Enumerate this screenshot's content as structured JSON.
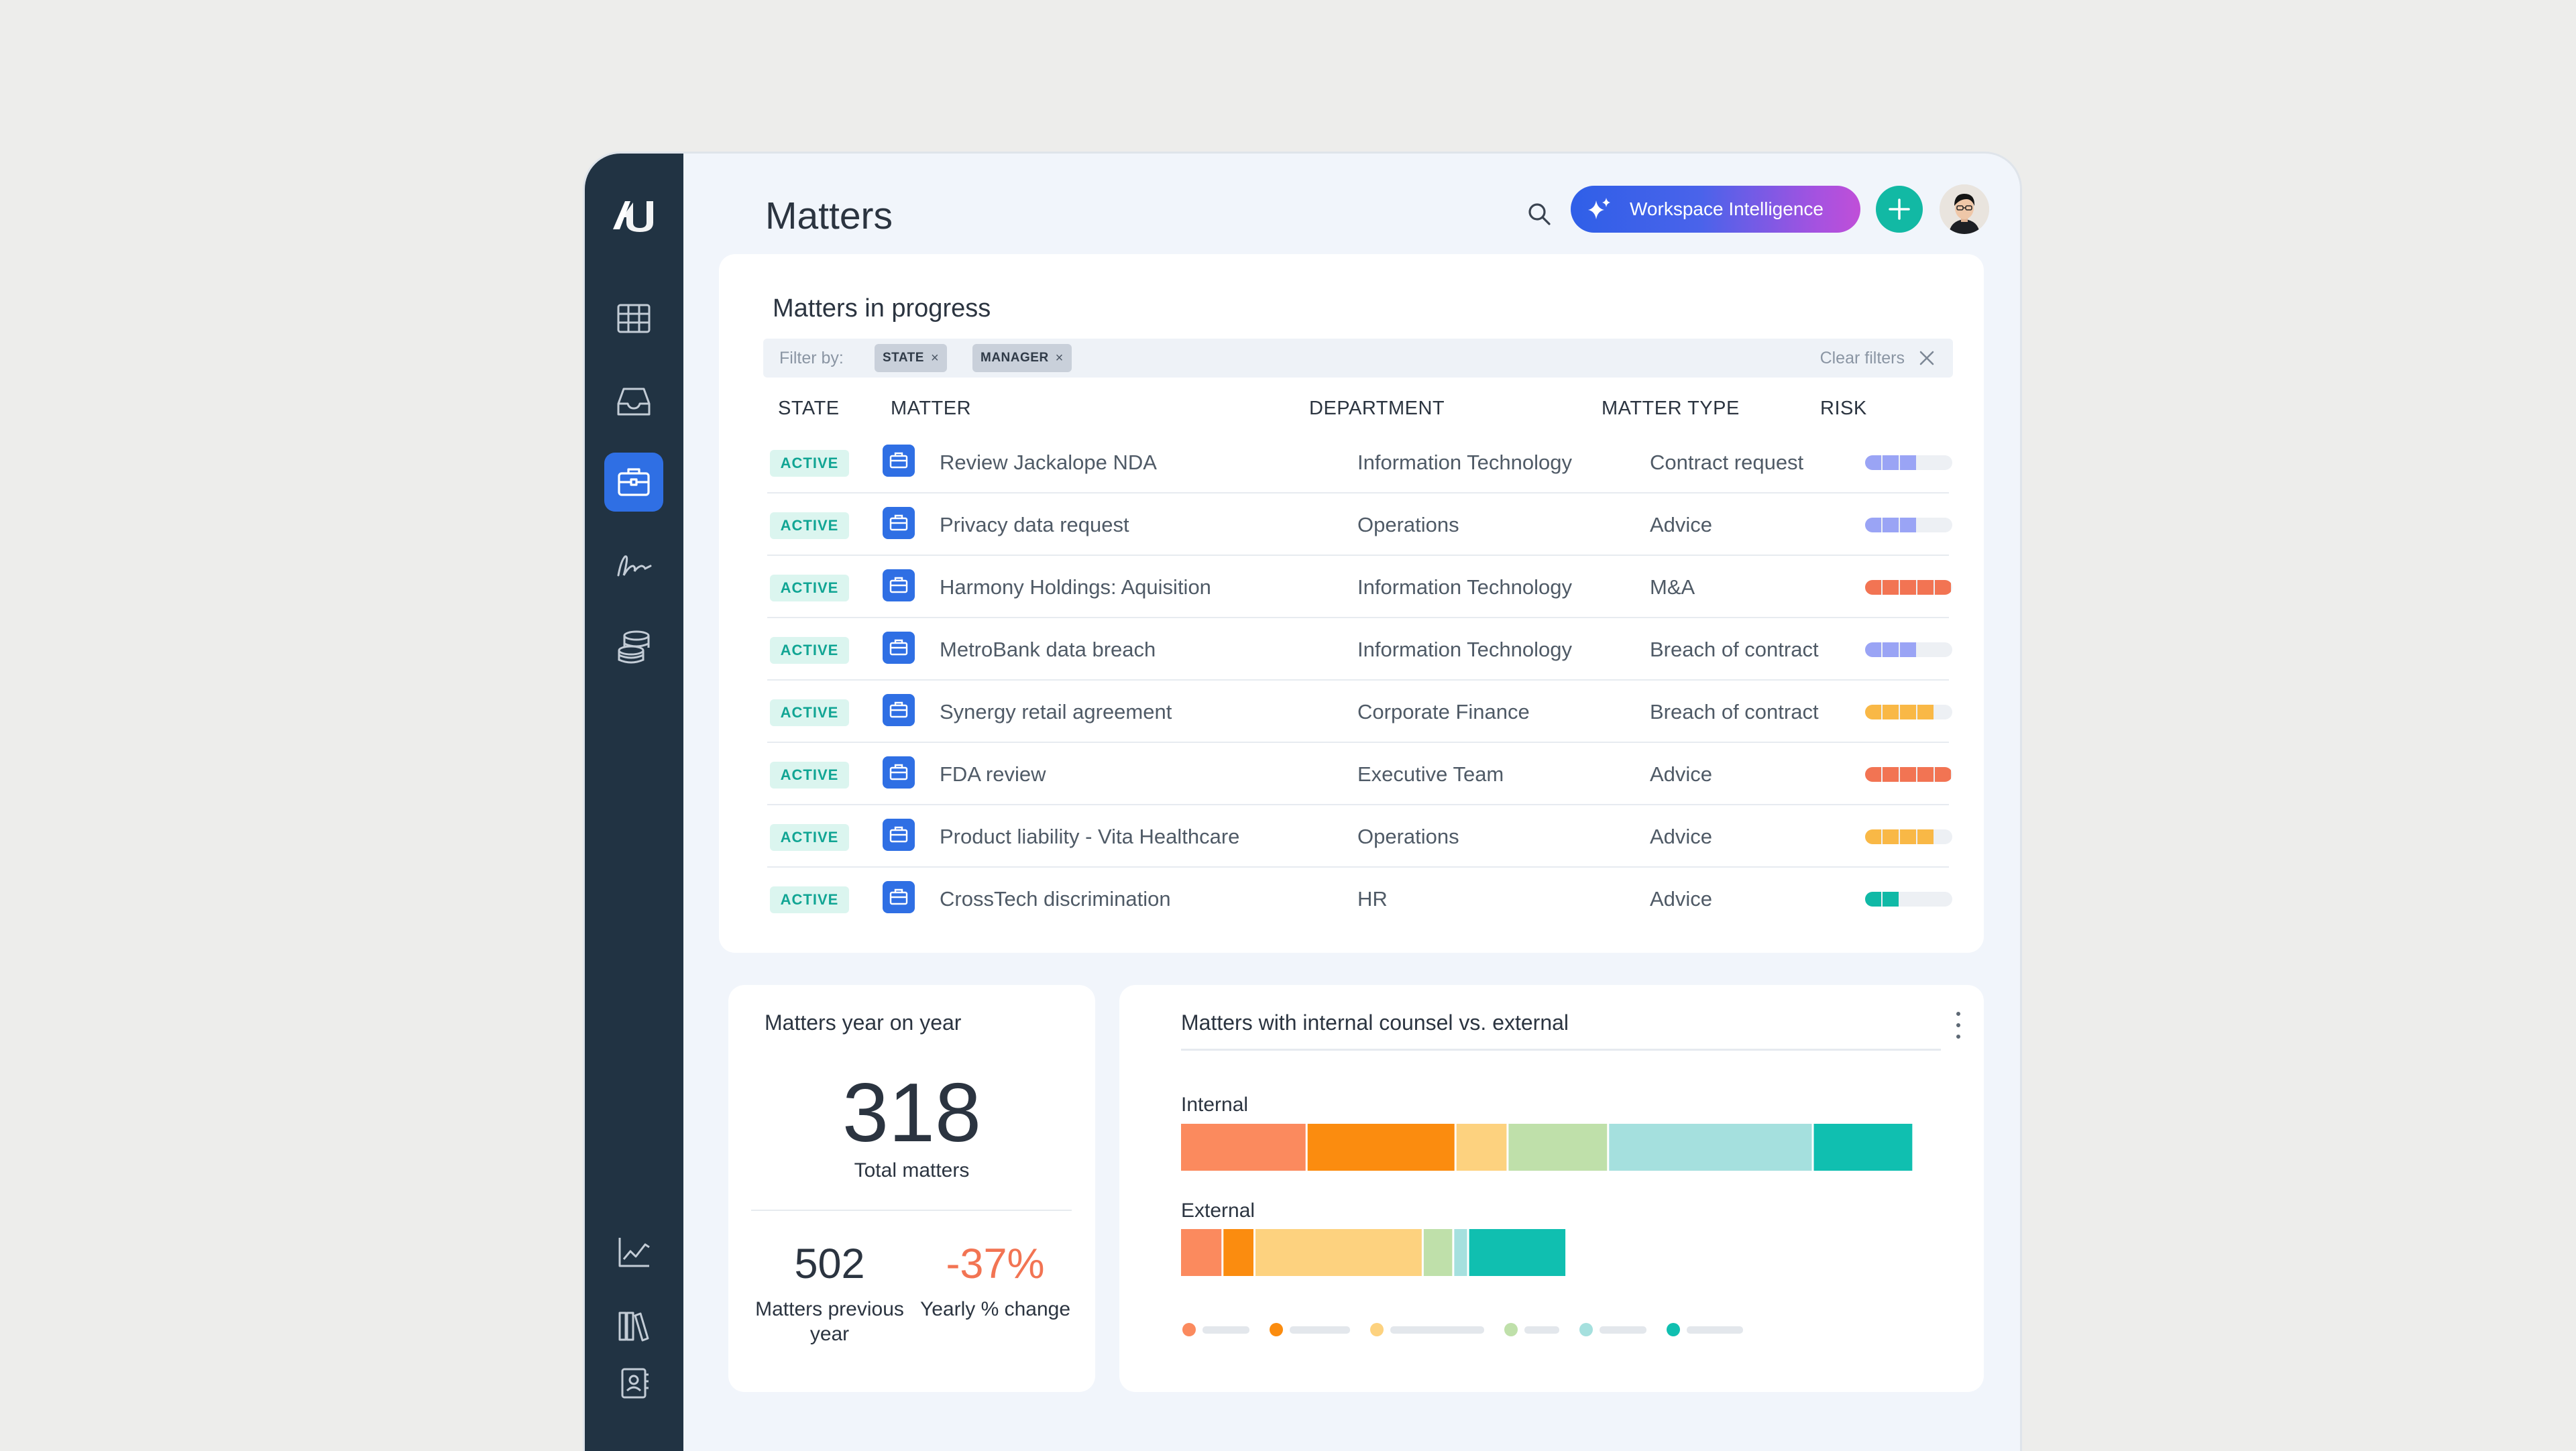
{
  "page": {
    "title": "Matters"
  },
  "header": {
    "ai_button_label": "Workspace Intelligence"
  },
  "sidebar": {
    "items": [
      {
        "name": "grid-icon",
        "active": false
      },
      {
        "name": "inbox-icon",
        "active": false
      },
      {
        "name": "briefcase-icon",
        "active": true
      },
      {
        "name": "signature-icon",
        "active": false
      },
      {
        "name": "database-icon",
        "active": false
      },
      {
        "name": "chart-icon",
        "active": false
      },
      {
        "name": "library-icon",
        "active": false
      },
      {
        "name": "contacts-icon",
        "active": false
      }
    ]
  },
  "matters": {
    "title": "Matters in progress",
    "filter_label": "Filter by:",
    "filters": [
      "STATE",
      "MANAGER"
    ],
    "clear_label": "Clear filters",
    "columns": [
      "STATE",
      "MATTER",
      "DEPARTMENT",
      "MATTER TYPE",
      "RISK"
    ],
    "rows": [
      {
        "state": "ACTIVE",
        "matter": "Review Jackalope NDA",
        "department": "Information Technology",
        "type": "Contract request",
        "risk_level": 3,
        "risk_color": "#9aa4f5"
      },
      {
        "state": "ACTIVE",
        "matter": "Privacy data request",
        "department": "Operations",
        "type": "Advice",
        "risk_level": 3,
        "risk_color": "#9aa4f5"
      },
      {
        "state": "ACTIVE",
        "matter": "Harmony Holdings: Aquisition",
        "department": "Information Technology",
        "type": "M&A",
        "risk_level": 5,
        "risk_color": "#f27453"
      },
      {
        "state": "ACTIVE",
        "matter": "MetroBank data breach",
        "department": "Information Technology",
        "type": "Breach of contract",
        "risk_level": 3,
        "risk_color": "#9aa4f5"
      },
      {
        "state": "ACTIVE",
        "matter": "Synergy retail agreement",
        "department": "Corporate Finance",
        "type": "Breach of contract",
        "risk_level": 4,
        "risk_color": "#f9b846"
      },
      {
        "state": "ACTIVE",
        "matter": "FDA review",
        "department": "Executive Team",
        "type": "Advice",
        "risk_level": 5,
        "risk_color": "#f27453"
      },
      {
        "state": "ACTIVE",
        "matter": "Product liability - Vita Healthcare",
        "department": "Operations",
        "type": "Advice",
        "risk_level": 4,
        "risk_color": "#f9b846"
      },
      {
        "state": "ACTIVE",
        "matter": "CrossTech discrimination",
        "department": "HR",
        "type": "Advice",
        "risk_level": 2,
        "risk_color": "#10b9a6"
      }
    ]
  },
  "yoy": {
    "title": "Matters year on year",
    "total": "318",
    "total_label": "Total matters",
    "previous": "502",
    "previous_label": "Matters previous year",
    "change": "-37%",
    "change_label": "Yearly % change",
    "change_color": "#f27453"
  },
  "counsel": {
    "title": "Matters with internal counsel vs. external",
    "colors": [
      "#fb8a5e",
      "#fb8c0f",
      "#fdd27f",
      "#bfe0aa",
      "#a5e0de",
      "#10bfb0"
    ],
    "bars": [
      {
        "label": "Internal",
        "segments": [
          17,
          20,
          7,
          13.5,
          27.5,
          13.5
        ]
      },
      {
        "label": "External",
        "segments": [
          5.7,
          4.3,
          22.6,
          4.1,
          2.0,
          13.2
        ]
      }
    ],
    "axis_max": 100
  }
}
